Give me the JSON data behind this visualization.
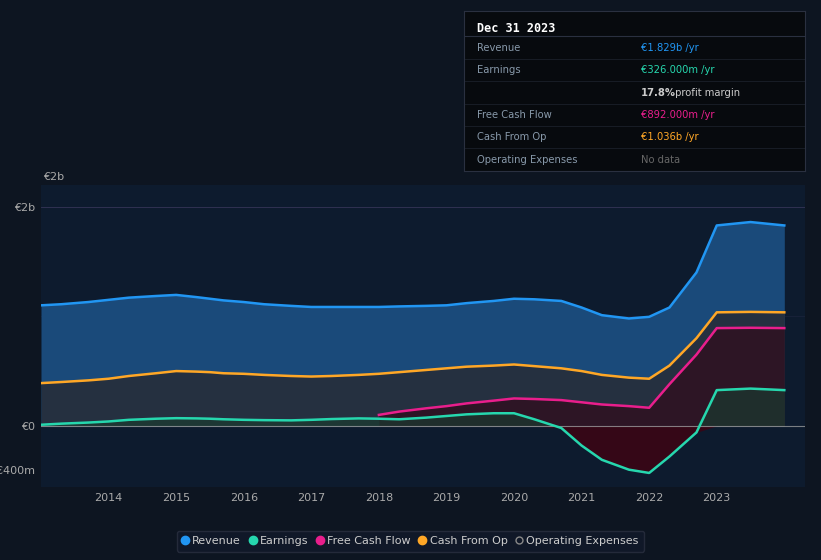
{
  "bg_color": "#0d1521",
  "plot_bg_color": "#0d1b2e",
  "years": [
    2013.0,
    2013.3,
    2013.7,
    2014.0,
    2014.3,
    2014.7,
    2015.0,
    2015.3,
    2015.5,
    2015.7,
    2016.0,
    2016.3,
    2016.7,
    2017.0,
    2017.3,
    2017.7,
    2018.0,
    2018.3,
    2018.7,
    2019.0,
    2019.3,
    2019.7,
    2020.0,
    2020.3,
    2020.7,
    2021.0,
    2021.3,
    2021.7,
    2022.0,
    2022.3,
    2022.7,
    2023.0,
    2023.5,
    2024.0
  ],
  "revenue": [
    1100,
    1110,
    1130,
    1150,
    1170,
    1185,
    1195,
    1175,
    1160,
    1145,
    1130,
    1110,
    1095,
    1085,
    1085,
    1085,
    1085,
    1090,
    1095,
    1100,
    1120,
    1140,
    1160,
    1155,
    1140,
    1080,
    1010,
    980,
    995,
    1080,
    1400,
    1829,
    1860,
    1829
  ],
  "cash_from_op": [
    390,
    400,
    415,
    430,
    455,
    480,
    500,
    495,
    490,
    480,
    475,
    465,
    455,
    450,
    455,
    465,
    475,
    490,
    510,
    525,
    540,
    550,
    560,
    545,
    525,
    500,
    465,
    440,
    430,
    550,
    800,
    1036,
    1040,
    1036
  ],
  "free_cash_flow_years": [
    2018.0,
    2018.3,
    2018.7,
    2019.0,
    2019.3,
    2019.7,
    2020.0,
    2020.3,
    2020.7,
    2021.0,
    2021.3,
    2021.7,
    2022.0,
    2022.3,
    2022.7,
    2023.0,
    2023.5,
    2024.0
  ],
  "free_cash_flow": [
    100,
    130,
    160,
    180,
    205,
    230,
    250,
    245,
    235,
    215,
    195,
    180,
    165,
    380,
    650,
    892,
    895,
    892
  ],
  "earnings": [
    10,
    20,
    30,
    40,
    55,
    65,
    70,
    68,
    65,
    60,
    55,
    52,
    50,
    55,
    62,
    68,
    65,
    60,
    75,
    90,
    105,
    115,
    115,
    60,
    -20,
    -180,
    -310,
    -400,
    -430,
    -280,
    -60,
    326,
    340,
    326
  ],
  "colors": {
    "revenue": "#2196f3",
    "cash_from_op": "#ffa726",
    "free_cash_flow": "#e91e8c",
    "earnings": "#26d7ae"
  },
  "fill_colors": {
    "revenue": "#1a4a7a",
    "cash_from_op": "#3a3020",
    "free_cash_flow": "#4a1535",
    "earnings_pos": "#1a4a40",
    "earnings_neg": "#4a1020"
  },
  "ylim": [
    -560,
    2200
  ],
  "ytick_positions": [
    -400,
    0,
    2000
  ],
  "ytick_labels": [
    "-€400m",
    "€0",
    "€2b"
  ],
  "xlim": [
    2013.0,
    2024.3
  ],
  "xtick_vals": [
    2014,
    2015,
    2016,
    2017,
    2018,
    2019,
    2020,
    2021,
    2022,
    2023
  ],
  "legend_items": [
    {
      "label": "Revenue",
      "color": "#2196f3"
    },
    {
      "label": "Earnings",
      "color": "#26d7ae"
    },
    {
      "label": "Free Cash Flow",
      "color": "#e91e8c"
    },
    {
      "label": "Cash From Op",
      "color": "#ffa726"
    },
    {
      "label": "Operating Expenses",
      "color": "#888888",
      "empty": true
    }
  ],
  "infobox": {
    "title": "Dec 31 2023",
    "rows": [
      {
        "label": "Revenue",
        "value": "€1.829b /yr",
        "vcolor": "#2196f3",
        "bold_prefix": ""
      },
      {
        "label": "Earnings",
        "value": "€326.000m /yr",
        "vcolor": "#26d7ae",
        "bold_prefix": ""
      },
      {
        "label": "",
        "value": "17.8% profit margin",
        "vcolor": "#cccccc",
        "bold_prefix": "17.8%"
      },
      {
        "label": "Free Cash Flow",
        "value": "€892.000m /yr",
        "vcolor": "#e91e8c",
        "bold_prefix": ""
      },
      {
        "label": "Cash From Op",
        "value": "€1.036b /yr",
        "vcolor": "#ffa726",
        "bold_prefix": ""
      },
      {
        "label": "Operating Expenses",
        "value": "No data",
        "vcolor": "#666666",
        "bold_prefix": ""
      }
    ]
  }
}
